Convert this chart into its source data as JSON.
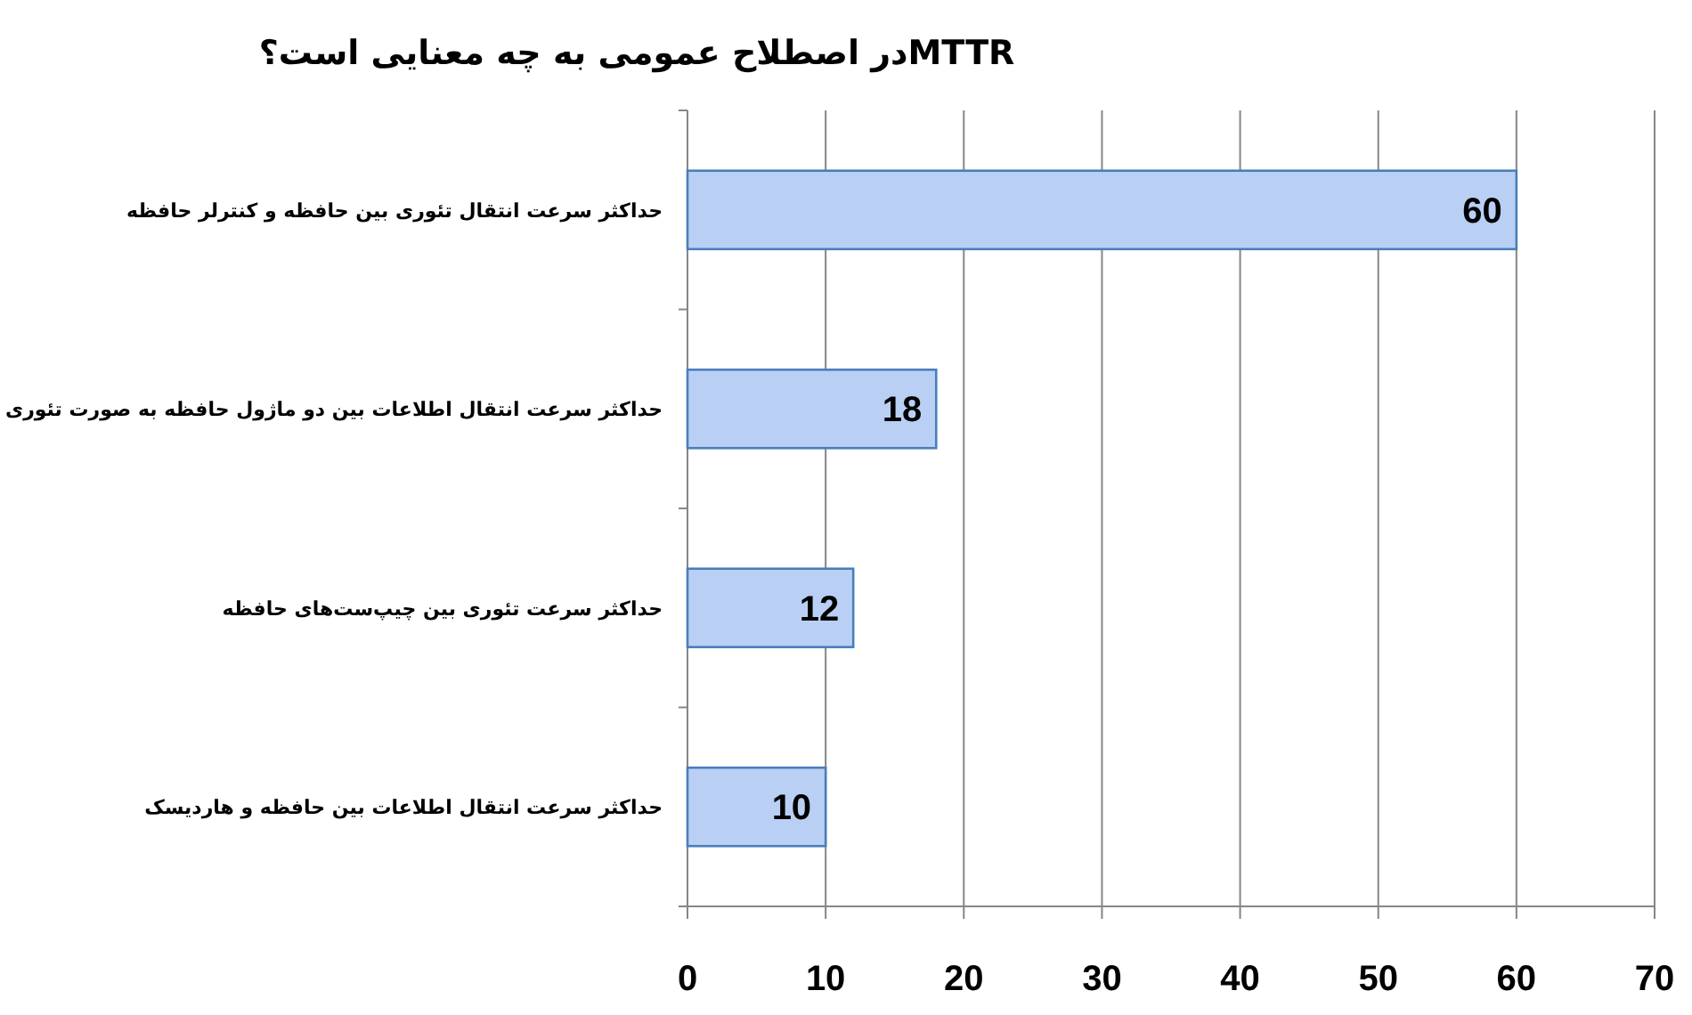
{
  "chart_data": {
    "type": "bar",
    "orientation": "horizontal",
    "title": "MTTRدر اصطلاح عمومی به چه معنایی است؟",
    "categories": [
      "حداکثر سرعت انتقال تئوری بین حافظه و کنترلر حافظه",
      "حداکثر سرعت انتقال اطلاعات بین دو ماژول حافظه به صورت تئوری",
      "حداکثر سرعت تئوری بین چیپ‌ست‌های حافظه",
      "حداکثر سرعت انتقال اطلاعات بین حافظه و هاردیسک"
    ],
    "values": [
      60,
      18,
      12,
      10
    ],
    "color": "#b9d0f4",
    "xlim": [
      0,
      70
    ],
    "xticks": [
      0,
      10,
      20,
      30,
      40,
      50,
      60,
      70
    ],
    "grid": "x",
    "data_labels": true
  }
}
